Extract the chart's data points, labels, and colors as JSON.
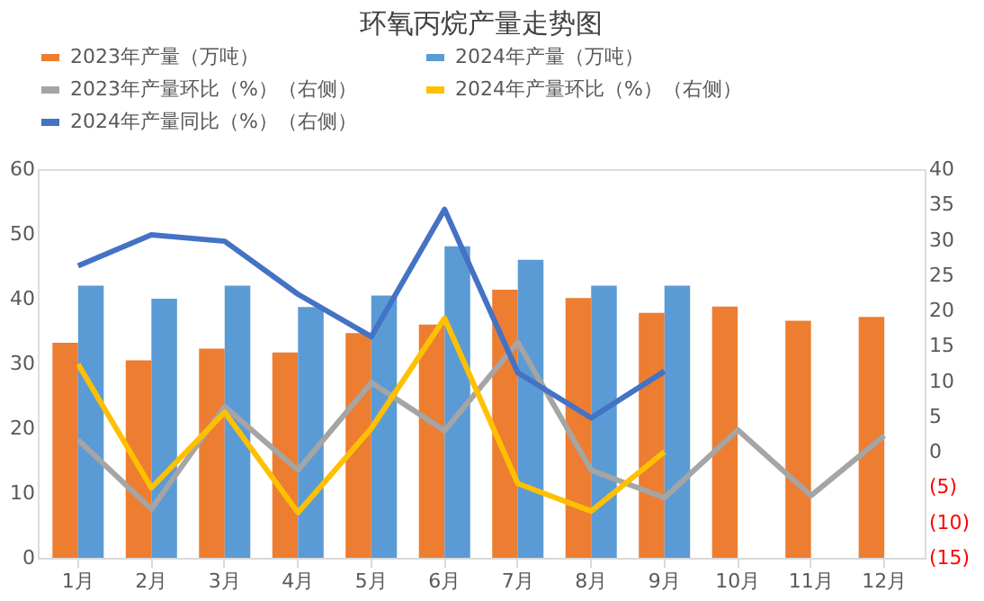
{
  "chart_data": {
    "type": "bar",
    "title": "环氧丙烷产量走势图",
    "categories": [
      "1月",
      "2月",
      "3月",
      "4月",
      "5月",
      "6月",
      "7月",
      "8月",
      "9月",
      "10月",
      "11月",
      "12月"
    ],
    "series": [
      {
        "name": "2023年产量（万吨）",
        "color": "#ed7d31",
        "values": [
          33.2,
          30.5,
          32.3,
          31.7,
          34.7,
          36,
          41.4,
          40.1,
          37.8,
          38.8,
          36.6,
          37.2
        ]
      },
      {
        "name": "2024年产量（万吨）",
        "color": "#5b9bd5",
        "values": [
          42,
          40,
          42,
          38.7,
          40.5,
          48.1,
          46,
          42,
          42,
          null,
          null,
          null
        ]
      },
      {
        "name": "2023年产量环比（%）（右侧）",
        "type": "line",
        "axis": "y2",
        "color": "#a5a5a5",
        "values": [
          1.7,
          -8.1,
          6.4,
          -2.6,
          9.8,
          3,
          15.5,
          -2.6,
          -6.5,
          3.1,
          -6.2,
          2.3
        ]
      },
      {
        "name": "2024年产量环比（%）（右侧）",
        "type": "line",
        "axis": "y2",
        "color": "#ffc000",
        "values": [
          12.4,
          -5.1,
          5.6,
          -8.6,
          3.3,
          18.9,
          -4.5,
          -8.4,
          0,
          null,
          null,
          null
        ]
      },
      {
        "name": "2024年产量同比（%）（右侧）",
        "type": "line",
        "axis": "y2",
        "color": "#4472c4",
        "values": [
          26.3,
          30.7,
          29.8,
          22.3,
          16.3,
          34.3,
          11.2,
          4.8,
          11.4,
          null,
          null,
          null
        ]
      }
    ],
    "ylim": [
      0,
      60
    ],
    "yticks": [
      0,
      10,
      20,
      30,
      40,
      50,
      60
    ],
    "y2lim": [
      -15,
      40
    ],
    "y2ticks": [
      {
        "value": -15,
        "label": "(15)"
      },
      {
        "value": -10,
        "label": "(10)"
      },
      {
        "value": -5,
        "label": "(5)"
      },
      0,
      5,
      10,
      15,
      20,
      25,
      30,
      35,
      40
    ],
    "grid": false,
    "legend": "top"
  }
}
